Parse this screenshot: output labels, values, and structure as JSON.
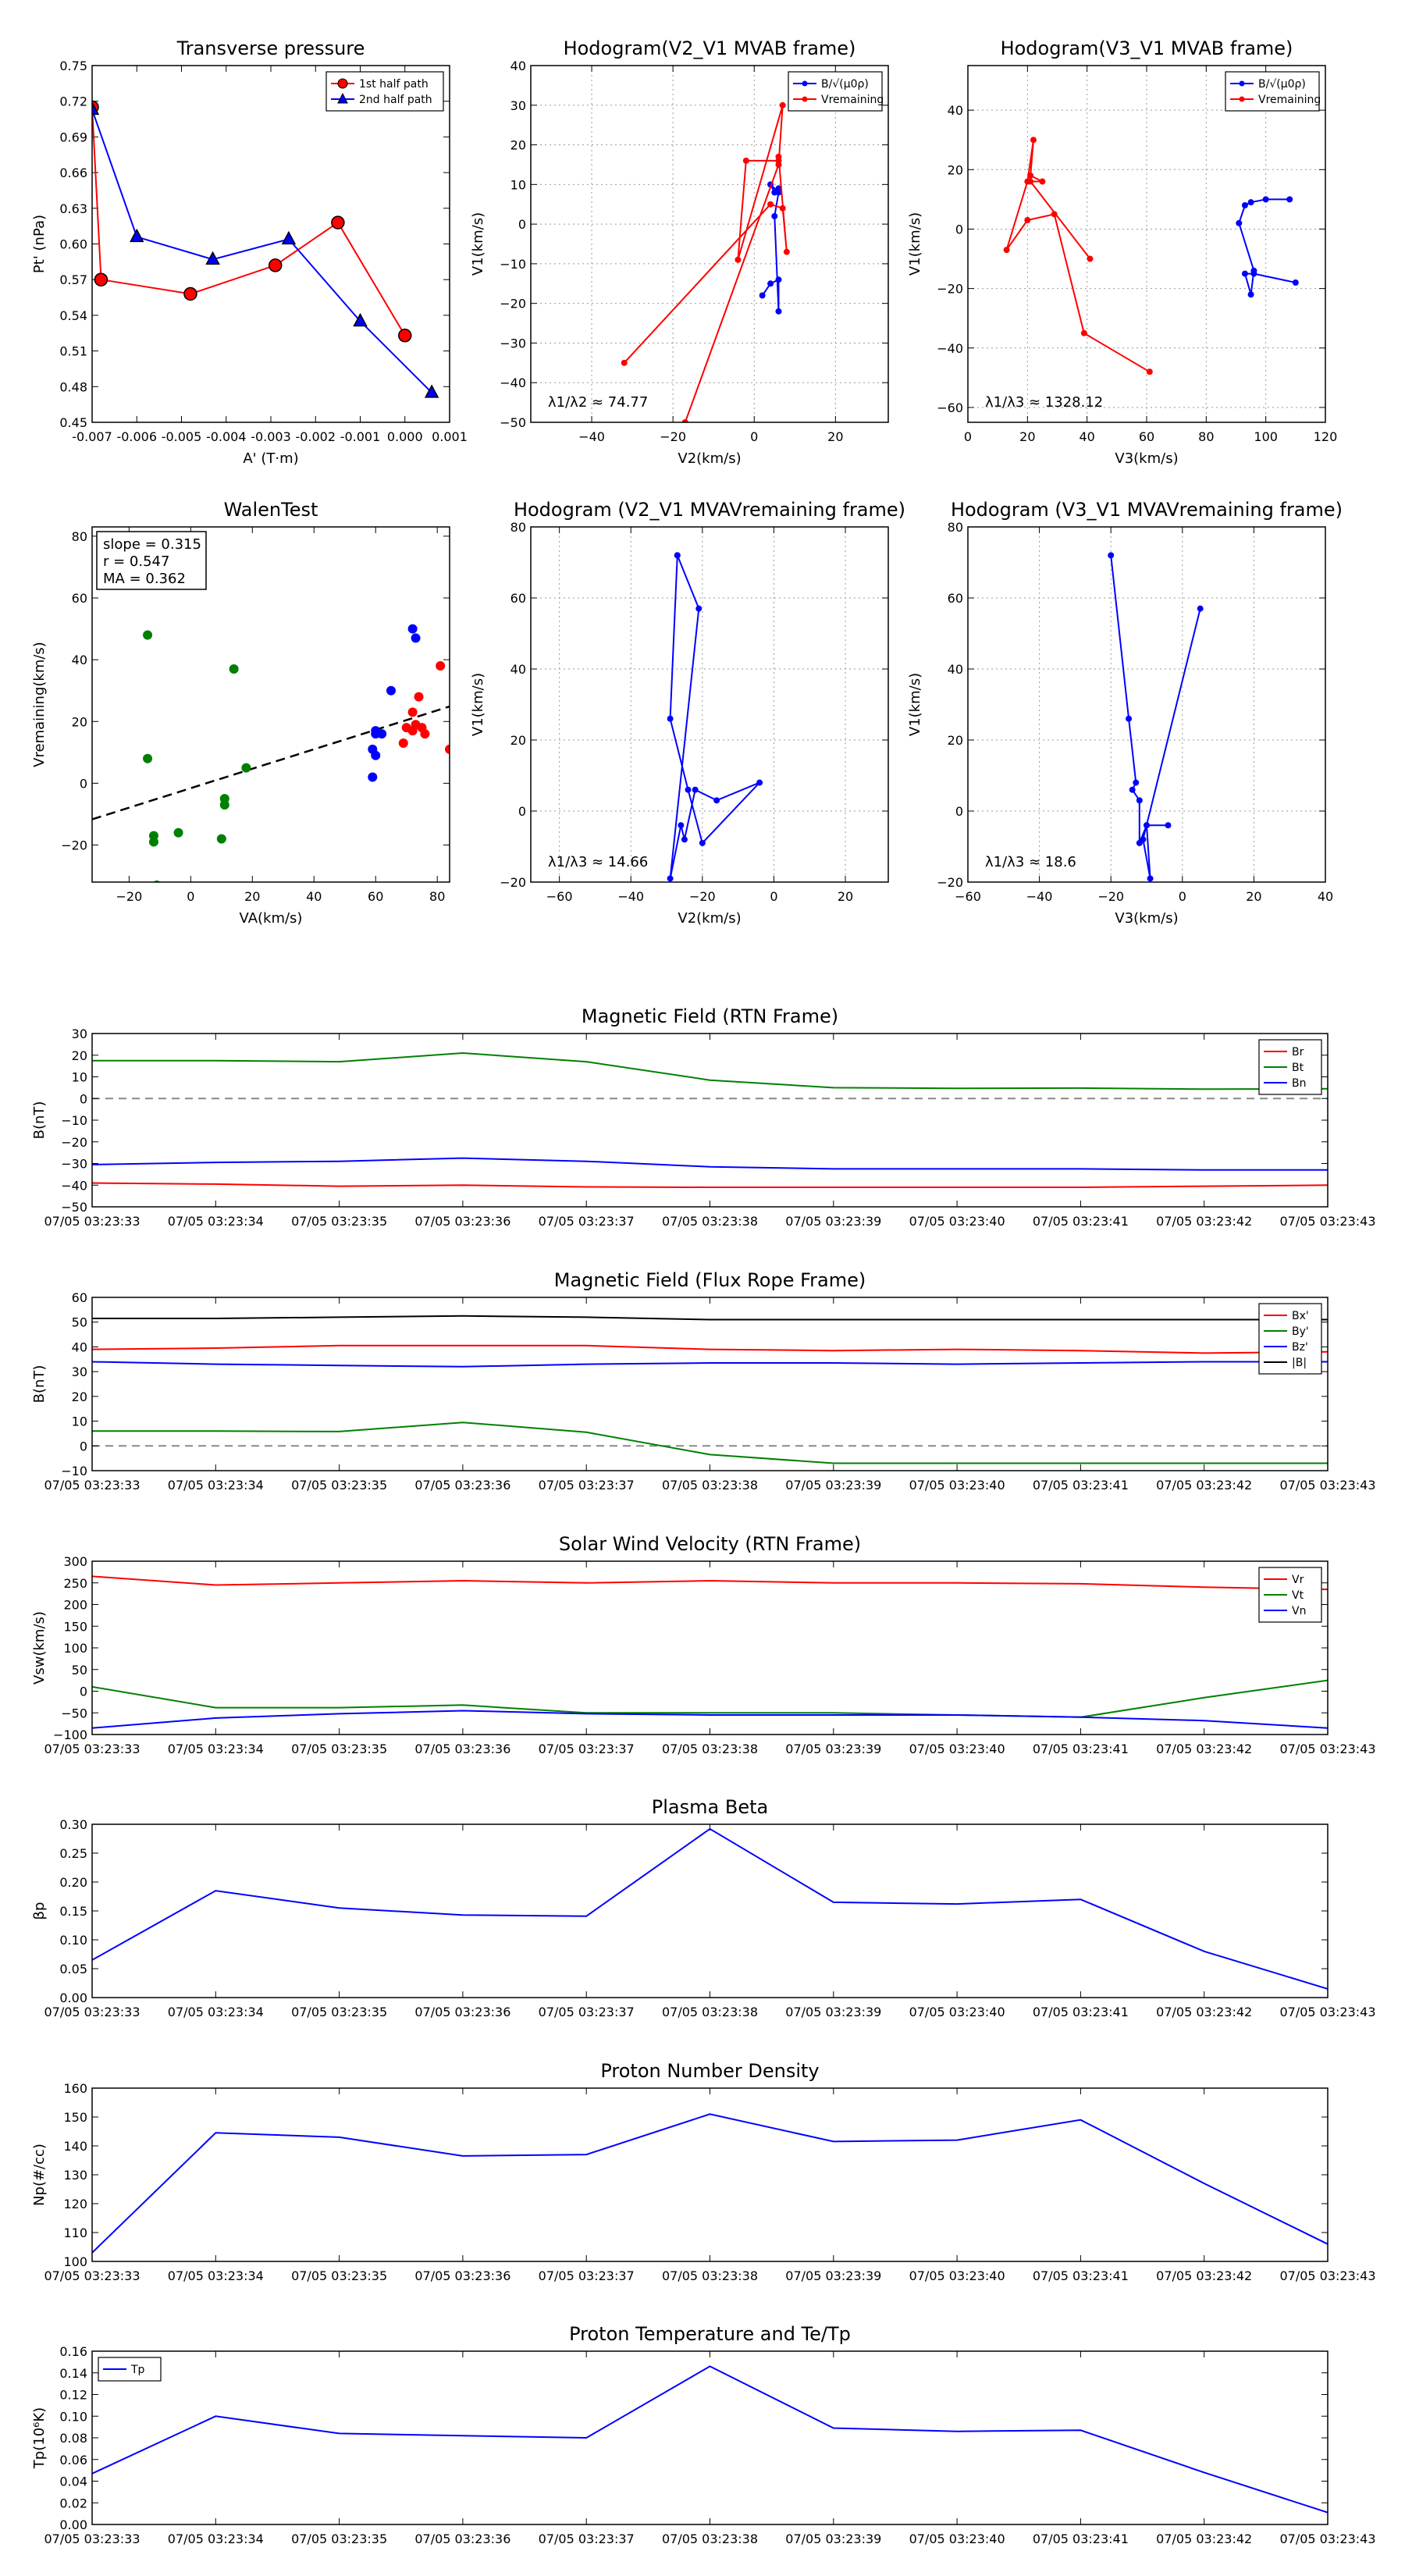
{
  "colors": {
    "red": "#ff0000",
    "green": "#008000",
    "blue": "#0000ff",
    "black": "#000000",
    "gridgray": "#888888"
  },
  "chart_data": [
    {
      "id": "tp",
      "type": "line",
      "title": "Transverse pressure",
      "xlabel": "A' (T·m)",
      "ylabel": "Pt' (nPa)",
      "xlim": [
        -0.007,
        0.001
      ],
      "ylim": [
        0.45,
        0.75
      ],
      "xticks": [
        -0.007,
        -0.006,
        -0.005,
        -0.004,
        -0.003,
        -0.002,
        -0.001,
        0.0,
        0.001
      ],
      "xtick_labels": [
        "-0.007",
        "-0.006",
        "-0.005",
        "-0.004",
        "-0.003",
        "-0.002",
        "-0.001",
        "0.000",
        "0.001"
      ],
      "yticks": [
        0.45,
        0.48,
        0.51,
        0.54,
        0.57,
        0.6,
        0.63,
        0.66,
        0.69,
        0.72,
        0.75
      ],
      "ytick_labels": [
        "0.45",
        "0.48",
        "0.51",
        "0.54",
        "0.57",
        "0.60",
        "0.63",
        "0.66",
        "0.69",
        "0.72",
        "0.75"
      ],
      "grid": false,
      "legend": "top-right",
      "series": [
        {
          "name": "1st half path",
          "color": "red",
          "marker": "circle",
          "x": [
            -0.007,
            -0.0068,
            -0.0048,
            -0.0029,
            -0.0015,
            0.0
          ],
          "y": [
            0.715,
            0.57,
            0.558,
            0.582,
            0.618,
            0.523
          ]
        },
        {
          "name": "2nd half path",
          "color": "blue",
          "marker": "triangle",
          "x": [
            0.0006,
            -0.001,
            -0.0026,
            -0.0043,
            -0.006,
            -0.007
          ],
          "y": [
            0.475,
            0.535,
            0.604,
            0.587,
            0.606,
            0.713
          ]
        }
      ]
    },
    {
      "id": "h1",
      "type": "line",
      "title": "Hodogram(V2_V1 MVAB frame)",
      "xlabel": "V2(km/s)",
      "ylabel": "V1(km/s)",
      "xlim": [
        -55,
        33
      ],
      "ylim": [
        -50,
        40
      ],
      "xticks": [
        -40,
        -20,
        0,
        20
      ],
      "xtick_labels": [
        "−40",
        "−20",
        "0",
        "20"
      ],
      "yticks": [
        -50,
        -40,
        -30,
        -20,
        -10,
        0,
        10,
        20,
        30,
        40
      ],
      "ytick_labels": [
        "−50",
        "−40",
        "−30",
        "−20",
        "−10",
        "0",
        "10",
        "20",
        "30",
        "40"
      ],
      "grid": true,
      "legend": "top-right",
      "annotation": "λ1/λ2 ≈ 74.77",
      "series": [
        {
          "name": "B/√(μ0ρ)",
          "color": "blue",
          "marker": "dot",
          "x": [
            2,
            4,
            6,
            6,
            5,
            6,
            4,
            5,
            6
          ],
          "y": [
            -18,
            -15,
            -14,
            -22,
            2,
            8,
            10,
            8,
            9
          ]
        },
        {
          "name": "Vremaining",
          "color": "red",
          "marker": "dot",
          "x": [
            -32,
            4,
            7,
            8,
            6,
            6,
            -2,
            -4,
            7,
            6,
            -17
          ],
          "y": [
            -35,
            5,
            4,
            -7,
            17,
            16,
            16,
            -9,
            30,
            15,
            -50
          ]
        }
      ]
    },
    {
      "id": "h2",
      "type": "line",
      "title": "Hodogram(V3_V1 MVAB frame)",
      "xlabel": "V3(km/s)",
      "ylabel": "V1(km/s)",
      "xlim": [
        0,
        120
      ],
      "ylim": [
        -65,
        55
      ],
      "xticks": [
        0,
        20,
        40,
        60,
        80,
        100,
        120
      ],
      "xtick_labels": [
        "0",
        "20",
        "40",
        "60",
        "80",
        "100",
        "120"
      ],
      "yticks": [
        -60,
        -40,
        -20,
        0,
        20,
        40
      ],
      "ytick_labels": [
        "−60",
        "−40",
        "−20",
        "0",
        "20",
        "40"
      ],
      "grid": true,
      "legend": "top-right",
      "annotation": "λ1/λ3 ≈ 1328.12",
      "series": [
        {
          "name": "B/√(μ0ρ)",
          "color": "blue",
          "marker": "dot",
          "x": [
            110,
            96,
            93,
            95,
            96,
            91,
            93,
            95,
            100,
            108
          ],
          "y": [
            -18,
            -15,
            -15,
            -22,
            -14,
            2,
            8,
            9,
            10,
            10
          ]
        },
        {
          "name": "Vremaining",
          "color": "red",
          "marker": "dot",
          "x": [
            61,
            39,
            29,
            20,
            13,
            20,
            22,
            21,
            25,
            21,
            41
          ],
          "y": [
            -48,
            -35,
            5,
            3,
            -7,
            16,
            30,
            18,
            16,
            16,
            -10
          ]
        }
      ]
    },
    {
      "id": "walen",
      "type": "scatter",
      "title": "WalenTest",
      "xlabel": "VA(km/s)",
      "ylabel": "Vremaining(km/s)",
      "xlim": [
        -32,
        84
      ],
      "ylim": [
        -32,
        83
      ],
      "xticks": [
        -20,
        0,
        20,
        40,
        60,
        80
      ],
      "xtick_labels": [
        "−20",
        "0",
        "20",
        "40",
        "60",
        "80"
      ],
      "yticks": [
        -20,
        0,
        20,
        40,
        60,
        80
      ],
      "ytick_labels": [
        "−20",
        "0",
        "20",
        "40",
        "60",
        "80"
      ],
      "grid": false,
      "stats": [
        "slope = 0.315",
        "r = 0.547",
        "MA = 0.362"
      ],
      "fit": {
        "slope": 0.315,
        "intercept": -1.6
      },
      "series": [
        {
          "name": "green",
          "color": "green",
          "x": [
            -14,
            -14,
            -12,
            -12,
            -4,
            10,
            11,
            11,
            14,
            18,
            -11
          ],
          "y": [
            48,
            8,
            -17,
            -19,
            -16,
            -18,
            -5,
            -7,
            37,
            5,
            -33
          ]
        },
        {
          "name": "blue",
          "color": "blue",
          "x": [
            72,
            73,
            65,
            60,
            60,
            59,
            62,
            60,
            59
          ],
          "y": [
            50,
            47,
            30,
            17,
            16,
            11,
            16,
            9,
            2
          ]
        },
        {
          "name": "red",
          "color": "red",
          "x": [
            81,
            74,
            72,
            70,
            73,
            76,
            69,
            72,
            75,
            84
          ],
          "y": [
            38,
            28,
            23,
            18,
            19,
            16,
            13,
            17,
            18,
            11
          ]
        }
      ]
    },
    {
      "id": "h3",
      "type": "line",
      "title": "Hodogram (V2_V1 MVAVremaining frame)",
      "xlabel": "V2(km/s)",
      "ylabel": "V1(km/s)",
      "xlim": [
        -68,
        32
      ],
      "ylim": [
        -20,
        80
      ],
      "xticks": [
        -60,
        -40,
        -20,
        0,
        20
      ],
      "xtick_labels": [
        "−60",
        "−40",
        "−20",
        "0",
        "20"
      ],
      "yticks": [
        -20,
        0,
        20,
        40,
        60,
        80
      ],
      "ytick_labels": [
        "−20",
        "0",
        "20",
        "40",
        "60",
        "80"
      ],
      "grid": true,
      "annotation": "λ1/λ3 ≈ 14.66",
      "series": [
        {
          "name": "B",
          "color": "blue",
          "marker": "dot",
          "x": [
            -27,
            -29,
            -24,
            -20,
            -4,
            -16,
            -22,
            -25,
            -26,
            -29,
            -21,
            -27
          ],
          "y": [
            72,
            26,
            6,
            -9,
            8,
            3,
            6,
            -8,
            -4,
            -19,
            57,
            72
          ]
        }
      ]
    },
    {
      "id": "h4",
      "type": "line",
      "title": "Hodogram (V3_V1 MVAVremaining frame)",
      "xlabel": "V3(km/s)",
      "ylabel": "V1(km/s)",
      "xlim": [
        -60,
        40
      ],
      "ylim": [
        -20,
        80
      ],
      "xticks": [
        -60,
        -40,
        -20,
        0,
        20,
        40
      ],
      "xtick_labels": [
        "−60",
        "−40",
        "−20",
        "0",
        "20",
        "40"
      ],
      "yticks": [
        -20,
        0,
        20,
        40,
        60,
        80
      ],
      "ytick_labels": [
        "−20",
        "0",
        "20",
        "40",
        "60",
        "80"
      ],
      "grid": true,
      "annotation": "λ1/λ3 ≈ 18.6",
      "series": [
        {
          "name": "B",
          "color": "blue",
          "marker": "dot",
          "x": [
            -20,
            -15,
            -13,
            -14,
            -12,
            -12,
            -10,
            -4,
            -10,
            -9,
            -11,
            5
          ],
          "y": [
            72,
            26,
            8,
            6,
            3,
            -9,
            -4,
            -4,
            -4,
            -19,
            -8,
            57
          ]
        }
      ]
    },
    {
      "id": "bfield",
      "type": "line",
      "timeseries": true,
      "title": "Magnetic Field (RTN Frame)",
      "ylabel": "B(nT)",
      "ylim": [
        -50,
        30
      ],
      "yticks": [
        -50,
        -40,
        -30,
        -20,
        -10,
        0,
        10,
        20,
        30
      ],
      "ytick_labels": [
        "−50",
        "−40",
        "−30",
        "−20",
        "−10",
        "0",
        "10",
        "20",
        "30"
      ],
      "zero_line": true,
      "legend": "top-right",
      "series": [
        {
          "name": "Br",
          "color": "red",
          "values": [
            -39,
            -39.5,
            -40.5,
            -40,
            -40.8,
            -41,
            -41,
            -41,
            -41,
            -40.5,
            -40
          ]
        },
        {
          "name": "Bt",
          "color": "green",
          "values": [
            17.5,
            17.5,
            17,
            21,
            17,
            8.5,
            5,
            4.7,
            4.8,
            4.3,
            4.5
          ]
        },
        {
          "name": "Bn",
          "color": "blue",
          "values": [
            -30.5,
            -29.5,
            -29,
            -27.5,
            -29,
            -31.5,
            -32.5,
            -32.5,
            -32.5,
            -33,
            -33
          ]
        }
      ]
    },
    {
      "id": "bfr",
      "type": "line",
      "timeseries": true,
      "title": "Magnetic Field (Flux Rope Frame)",
      "ylabel": "B(nT)",
      "ylim": [
        -10,
        60
      ],
      "yticks": [
        -10,
        0,
        10,
        20,
        30,
        40,
        50,
        60
      ],
      "ytick_labels": [
        "−10",
        "0",
        "10",
        "20",
        "30",
        "40",
        "50",
        "60"
      ],
      "zero_line": true,
      "legend": "top-right",
      "series": [
        {
          "name": "Bx'",
          "color": "red",
          "values": [
            39,
            39.5,
            40.5,
            40.5,
            40.5,
            39,
            38.5,
            39,
            38.5,
            37.5,
            38
          ]
        },
        {
          "name": "By'",
          "color": "green",
          "values": [
            6,
            6,
            5.8,
            9.5,
            5.5,
            -3.5,
            -7,
            -7,
            -7,
            -7,
            -7
          ]
        },
        {
          "name": "Bz'",
          "color": "blue",
          "values": [
            34,
            33,
            32.5,
            32,
            33,
            33.5,
            33.5,
            33,
            33.5,
            34,
            34
          ]
        },
        {
          "name": "|B|",
          "color": "black",
          "values": [
            51.5,
            51.5,
            52,
            52.5,
            52,
            51,
            51,
            51,
            51,
            51,
            51
          ]
        }
      ]
    },
    {
      "id": "vsw",
      "type": "line",
      "timeseries": true,
      "title": "Solar Wind Velocity (RTN Frame)",
      "ylabel": "Vsw(km/s)",
      "ylim": [
        -100,
        300
      ],
      "yticks": [
        -100,
        -50,
        0,
        50,
        100,
        150,
        200,
        250,
        300
      ],
      "ytick_labels": [
        "−100",
        "−50",
        "0",
        "50",
        "100",
        "150",
        "200",
        "250",
        "300"
      ],
      "legend": "top-right",
      "series": [
        {
          "name": "Vr",
          "color": "red",
          "values": [
            265,
            245,
            250,
            255,
            250,
            255,
            250,
            250,
            248,
            240,
            235
          ]
        },
        {
          "name": "Vt",
          "color": "green",
          "values": [
            10,
            -38,
            -38,
            -32,
            -50,
            -50,
            -50,
            -55,
            -60,
            -15,
            25
          ]
        },
        {
          "name": "Vn",
          "color": "blue",
          "values": [
            -85,
            -62,
            -52,
            -45,
            -52,
            -55,
            -55,
            -55,
            -60,
            -68,
            -85
          ]
        }
      ]
    },
    {
      "id": "beta",
      "type": "line",
      "timeseries": true,
      "title": "Plasma Beta",
      "ylabel": "βp",
      "ylim": [
        0,
        0.3
      ],
      "yticks": [
        0,
        0.05,
        0.1,
        0.15,
        0.2,
        0.25,
        0.3
      ],
      "ytick_labels": [
        "0.00",
        "0.05",
        "0.10",
        "0.15",
        "0.20",
        "0.25",
        "0.30"
      ],
      "series": [
        {
          "name": "beta",
          "color": "blue",
          "values": [
            0.065,
            0.185,
            0.155,
            0.143,
            0.141,
            0.292,
            0.165,
            0.162,
            0.17,
            0.08,
            0.015
          ]
        }
      ]
    },
    {
      "id": "np",
      "type": "line",
      "timeseries": true,
      "title": "Proton Number Density",
      "ylabel": "Np(#/cc)",
      "ylim": [
        100,
        160
      ],
      "yticks": [
        100,
        110,
        120,
        130,
        140,
        150,
        160
      ],
      "ytick_labels": [
        "100",
        "110",
        "120",
        "130",
        "140",
        "150",
        "160"
      ],
      "series": [
        {
          "name": "Np",
          "color": "blue",
          "values": [
            103,
            144.5,
            143,
            136.5,
            137,
            151,
            141.5,
            142,
            149,
            127,
            106
          ]
        }
      ]
    },
    {
      "id": "tpt",
      "type": "line",
      "timeseries": true,
      "title": "Proton Temperature and Te/Tp",
      "ylabel": "Tp(10⁶K)",
      "ylim": [
        0,
        0.16
      ],
      "yticks": [
        0,
        0.02,
        0.04,
        0.06,
        0.08,
        0.1,
        0.12,
        0.14,
        0.16
      ],
      "ytick_labels": [
        "0.00",
        "0.02",
        "0.04",
        "0.06",
        "0.08",
        "0.10",
        "0.12",
        "0.14",
        "0.16"
      ],
      "legend": "top-left",
      "series": [
        {
          "name": "Tp",
          "color": "blue",
          "values": [
            0.047,
            0.1,
            0.084,
            0.082,
            0.08,
            0.146,
            0.089,
            0.086,
            0.087,
            0.048,
            0.011
          ]
        }
      ]
    }
  ],
  "time_labels": [
    "07/05 03:23:33",
    "07/05 03:23:34",
    "07/05 03:23:35",
    "07/05 03:23:36",
    "07/05 03:23:37",
    "07/05 03:23:38",
    "07/05 03:23:39",
    "07/05 03:23:40",
    "07/05 03:23:41",
    "07/05 03:23:42",
    "07/05 03:23:43"
  ]
}
